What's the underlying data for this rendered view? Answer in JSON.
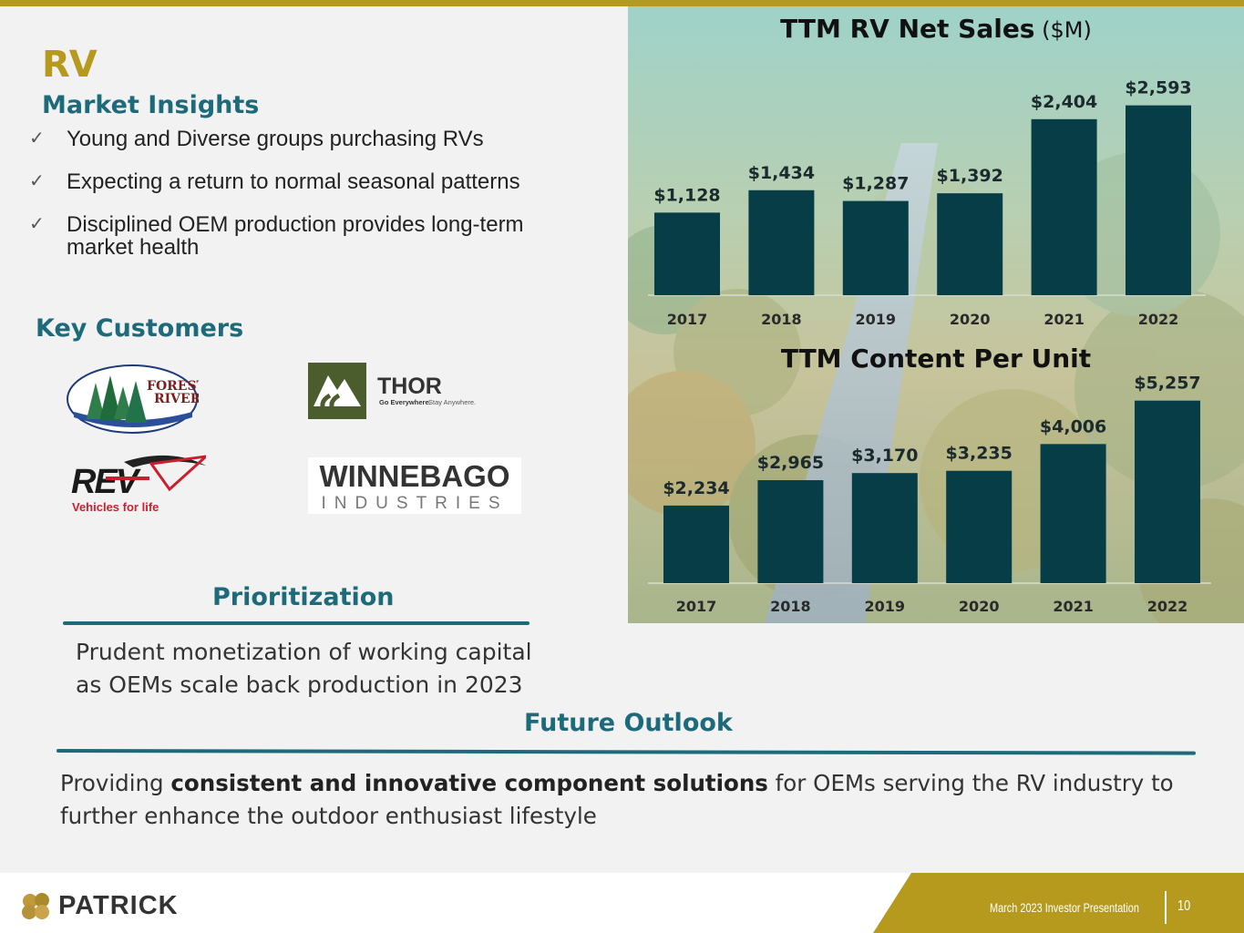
{
  "header": {
    "title": "RV",
    "insights_heading": "Market Insights",
    "check_glyph": "✓",
    "bullets": [
      "Young and Diverse groups purchasing RVs",
      "Expecting a return to normal seasonal patterns",
      "Disciplined OEM production provides long-term market health"
    ]
  },
  "customers": {
    "heading": "Key Customers",
    "logos": {
      "forest_river": [
        "FOREST",
        "RIVER"
      ],
      "thor": {
        "name": "THOR",
        "tagline_bold": "Go Everywhere.",
        "tagline": "Stay Anywhere."
      },
      "rev": {
        "name": "REV",
        "tagline": "Vehicles for life"
      },
      "winnebago": {
        "name": "WINNEBAGO",
        "sub": "INDUSTRIES"
      }
    }
  },
  "prioritization": {
    "heading": "Prioritization",
    "text": "Prudent monetization of working capital as OEMs scale back production in 2023"
  },
  "future": {
    "heading": "Future Outlook",
    "text_before": "Providing ",
    "text_bold": "consistent and innovative component solutions",
    "text_after": " for OEMs serving the RV industry to further enhance the outdoor enthusiast lifestyle"
  },
  "chart_data": [
    {
      "type": "bar",
      "title": "TTM RV Net Sales",
      "title_unit": "($M)",
      "categories": [
        "2017",
        "2018",
        "2019",
        "2020",
        "2021",
        "2022"
      ],
      "values": [
        1128,
        1434,
        1287,
        1392,
        2404,
        2593
      ],
      "labels": [
        "$1,128",
        "$1,434",
        "$1,287",
        "$1,392",
        "$2,404",
        "$2,593"
      ],
      "ylim": [
        0,
        2800
      ],
      "bar_color": "#063d47"
    },
    {
      "type": "bar",
      "title": "TTM Content Per Unit",
      "title_unit": "",
      "categories": [
        "2017",
        "2018",
        "2019",
        "2020",
        "2021",
        "2022"
      ],
      "values": [
        2234,
        2965,
        3170,
        3235,
        4006,
        5257
      ],
      "labels": [
        "$2,234",
        "$2,965",
        "$3,170",
        "$3,235",
        "$4,006",
        "$5,257"
      ],
      "ylim": [
        0,
        5800
      ],
      "bar_color": "#063d47"
    }
  ],
  "footer": {
    "brand": "PATRICK",
    "caption": "March 2023 Investor Presentation",
    "page": "10"
  },
  "colors": {
    "gold": "#b59a1d",
    "teal": "#1d6a7a",
    "bar": "#063d47"
  }
}
